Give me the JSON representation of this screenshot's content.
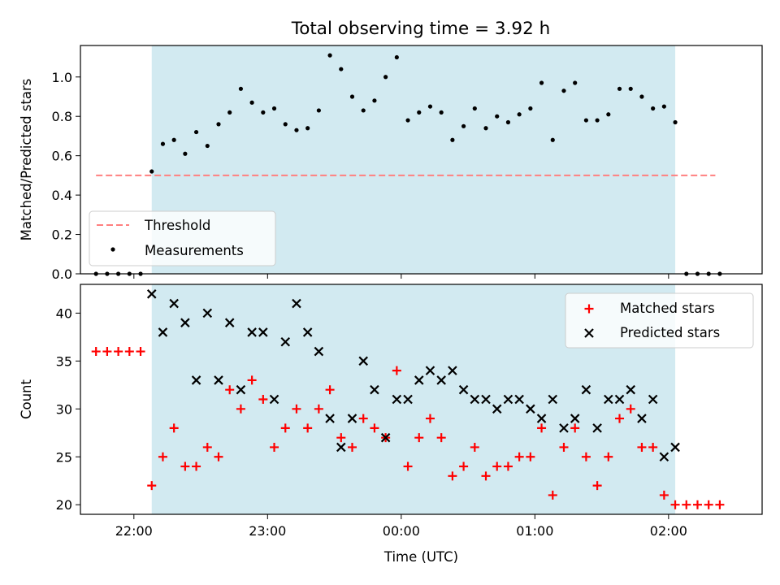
{
  "title": "Total observing time = 3.92 h",
  "colors": {
    "shade": "#add8e6",
    "threshold": "#ff7f7f",
    "matched": "#ff0000",
    "predicted": "#000000",
    "measure": "#000000"
  },
  "chart_data": [
    {
      "type": "scatter",
      "panel": "top",
      "title": "Total observing time = 3.92 h",
      "xlabel": "",
      "ylabel": "Matched/Predicted stars",
      "ylim": [
        0,
        1.16
      ],
      "yticks": [
        "0.0",
        "0.2",
        "0.4",
        "0.6",
        "0.8",
        "1.0"
      ],
      "xlim": [
        "21:36",
        "02:42"
      ],
      "observing_window": [
        "22:08",
        "02:03"
      ],
      "threshold": {
        "name": "Threshold",
        "y": 0.5,
        "x_range": [
          "21:43",
          "02:21"
        ]
      },
      "series": [
        {
          "name": "Measurements",
          "x": [
            "21:43",
            "21:48",
            "21:53",
            "21:58",
            "22:03",
            "22:08",
            "22:13",
            "22:18",
            "22:23",
            "22:28",
            "22:33",
            "22:38",
            "22:43",
            "22:48",
            "22:53",
            "22:58",
            "23:03",
            "23:08",
            "23:13",
            "23:18",
            "23:23",
            "23:28",
            "23:33",
            "23:38",
            "23:43",
            "23:48",
            "23:53",
            "23:58",
            "00:03",
            "00:08",
            "00:13",
            "00:18",
            "00:23",
            "00:28",
            "00:33",
            "00:38",
            "00:43",
            "00:48",
            "00:53",
            "00:58",
            "01:03",
            "01:08",
            "01:13",
            "01:18",
            "01:23",
            "01:28",
            "01:33",
            "01:38",
            "01:43",
            "01:48",
            "01:53",
            "01:58",
            "02:03",
            "02:08",
            "02:13",
            "02:18",
            "02:23"
          ],
          "y": [
            0,
            0,
            0,
            0,
            0,
            0.52,
            0.66,
            0.68,
            0.61,
            0.72,
            0.65,
            0.76,
            0.82,
            0.94,
            0.87,
            0.82,
            0.84,
            0.76,
            0.73,
            0.74,
            0.83,
            1.11,
            1.04,
            0.9,
            0.83,
            0.88,
            1.0,
            1.1,
            0.78,
            0.82,
            0.85,
            0.82,
            0.68,
            0.75,
            0.84,
            0.74,
            0.8,
            0.77,
            0.81,
            0.84,
            0.97,
            0.68,
            0.93,
            0.97,
            0.78,
            0.78,
            0.81,
            0.94,
            0.94,
            0.9,
            0.84,
            0.85,
            0.77,
            0,
            0,
            0,
            0
          ]
        }
      ],
      "legend": [
        "Threshold",
        "Measurements"
      ],
      "legend_position": "lower-left"
    },
    {
      "type": "scatter",
      "panel": "bottom",
      "xlabel": "Time (UTC)",
      "ylabel": "Count",
      "ylim": [
        19,
        43
      ],
      "yticks": [
        "20",
        "25",
        "30",
        "35",
        "40"
      ],
      "xticks": [
        "22:00",
        "23:00",
        "00:00",
        "01:00",
        "02:00"
      ],
      "xlim": [
        "21:36",
        "02:42"
      ],
      "observing_window": [
        "22:08",
        "02:03"
      ],
      "series": [
        {
          "name": "Matched stars",
          "marker": "plus",
          "x": [
            "21:43",
            "21:48",
            "21:53",
            "21:58",
            "22:03",
            "22:08",
            "22:13",
            "22:18",
            "22:23",
            "22:28",
            "22:33",
            "22:38",
            "22:43",
            "22:48",
            "22:53",
            "22:58",
            "23:03",
            "23:08",
            "23:13",
            "23:18",
            "23:23",
            "23:28",
            "23:33",
            "23:38",
            "23:43",
            "23:48",
            "23:53",
            "23:58",
            "00:03",
            "00:08",
            "00:13",
            "00:18",
            "00:23",
            "00:28",
            "00:33",
            "00:38",
            "00:43",
            "00:48",
            "00:53",
            "00:58",
            "01:03",
            "01:08",
            "01:13",
            "01:18",
            "01:23",
            "01:28",
            "01:33",
            "01:38",
            "01:43",
            "01:48",
            "01:53",
            "01:58",
            "02:03",
            "02:08",
            "02:13",
            "02:18",
            "02:23"
          ],
          "y": [
            36,
            36,
            36,
            36,
            36,
            22,
            25,
            28,
            24,
            24,
            26,
            25,
            32,
            30,
            33,
            31,
            26,
            28,
            30,
            28,
            30,
            32,
            27,
            26,
            29,
            28,
            27,
            34,
            24,
            27,
            29,
            27,
            23,
            24,
            26,
            23,
            24,
            24,
            25,
            25,
            28,
            21,
            26,
            28,
            25,
            22,
            25,
            29,
            30,
            26,
            26,
            21,
            20,
            20,
            20,
            20,
            20
          ]
        },
        {
          "name": "Predicted stars",
          "marker": "x",
          "x": [
            "22:08",
            "22:13",
            "22:18",
            "22:23",
            "22:28",
            "22:33",
            "22:38",
            "22:43",
            "22:48",
            "22:53",
            "22:58",
            "23:03",
            "23:08",
            "23:13",
            "23:18",
            "23:23",
            "23:28",
            "23:33",
            "23:38",
            "23:43",
            "23:48",
            "23:53",
            "23:58",
            "00:03",
            "00:08",
            "00:13",
            "00:18",
            "00:23",
            "00:28",
            "00:33",
            "00:38",
            "00:43",
            "00:48",
            "00:53",
            "00:58",
            "01:03",
            "01:08",
            "01:13",
            "01:18",
            "01:23",
            "01:28",
            "01:33",
            "01:38",
            "01:43",
            "01:48",
            "01:53",
            "01:58",
            "02:03"
          ],
          "y": [
            42,
            38,
            41,
            39,
            33,
            40,
            33,
            39,
            32,
            38,
            38,
            31,
            37,
            41,
            38,
            36,
            29,
            26,
            29,
            35,
            32,
            27,
            31,
            31,
            33,
            34,
            33,
            34,
            32,
            31,
            31,
            30,
            31,
            31,
            30,
            29,
            31,
            28,
            29,
            32,
            28,
            31,
            31,
            32,
            29,
            31,
            25,
            26
          ]
        }
      ],
      "legend": [
        "Matched stars",
        "Predicted stars"
      ],
      "legend_position": "upper-right"
    }
  ]
}
